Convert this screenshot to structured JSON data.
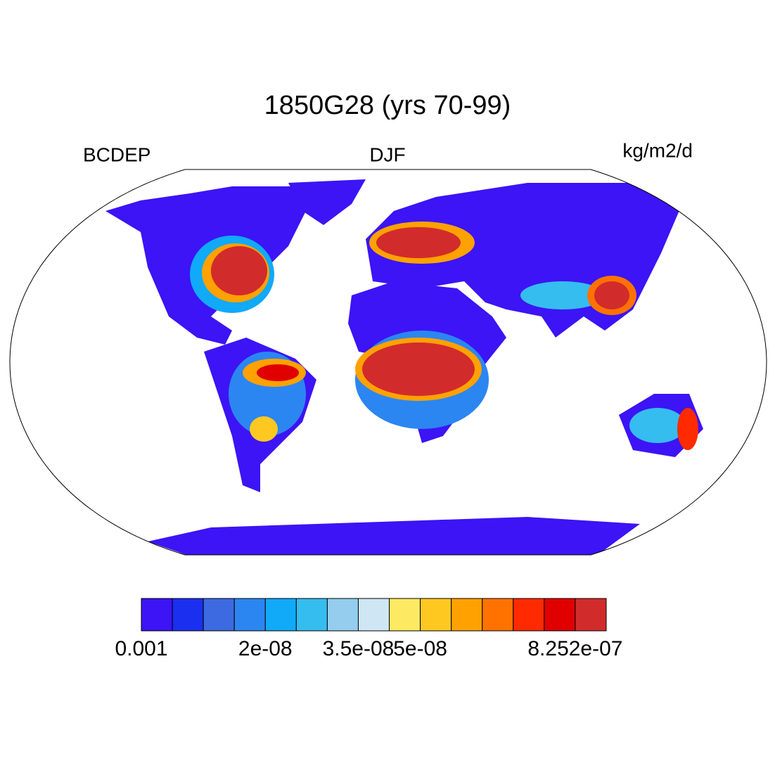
{
  "header": {
    "title": "1850G28 (yrs 70-99)",
    "left": "BCDEP",
    "center": "DJF",
    "right": "kg/m2/d"
  },
  "colorbar": {
    "colors": [
      "#3c14f5",
      "#1b2ff0",
      "#3d6ae0",
      "#2b86f2",
      "#10aaf8",
      "#35bdf0",
      "#94cded",
      "#cfe6f5",
      "#fde962",
      "#ffc821",
      "#ffa100",
      "#ff7200",
      "#ff2a00",
      "#e00000",
      "#d22b2b"
    ],
    "labels": [
      "0.001",
      null,
      null,
      null,
      "2e-08",
      null,
      null,
      "3.5e-08",
      null,
      "5e-08",
      null,
      null,
      null,
      null,
      "8.252e-07"
    ]
  }
}
